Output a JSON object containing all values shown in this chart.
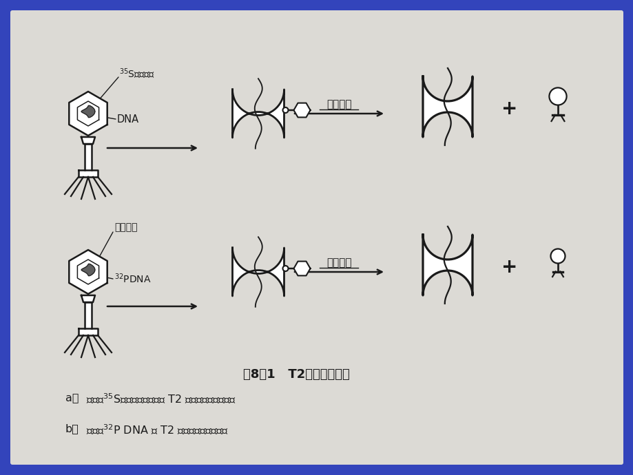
{
  "bg_color": "#3344bb",
  "panel_bg": "#dcdad5",
  "line_color": "#1a1a1a",
  "title": "图8－1   T2噬菌体的实验",
  "caption_a": "用含有$^{35}$S标记蛋白质外壳的 T2 噬菌体感染大肠杆菌",
  "caption_b": "用含有$^{32}$P DNA 的 T2 噬菌体感染大肠杆菌",
  "label_35S": "$^{35}$S外壳蛋白",
  "label_DNA_a": "DNA",
  "label_coat": "外壳蛋白",
  "label_32P": "$^{32}$PDNA",
  "label_mix": "混合处理",
  "plus": "+",
  "fig_width": 9.2,
  "fig_height": 6.9,
  "dpi": 100
}
